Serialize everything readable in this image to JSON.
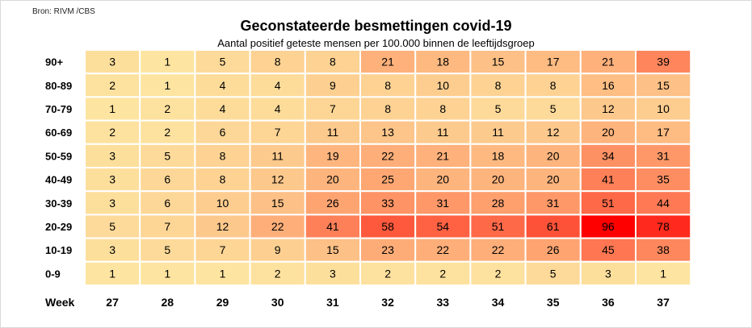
{
  "source": "Bron: RIVM /CBS",
  "colors": {
    "low": "#fde4a0",
    "mid": "#fe9a6a",
    "high": "#ff0000",
    "gridline": "#ffffff",
    "text": "#000000"
  },
  "chart_data": {
    "type": "heatmap",
    "title": "Geconstateerde besmettingen covid-19",
    "subtitle": "Aantal positief geteste mensen per 100.000 binnen de leeftijdsgroep",
    "xlabel": "Week",
    "x": [
      "27",
      "28",
      "29",
      "30",
      "31",
      "32",
      "33",
      "34",
      "35",
      "36",
      "37"
    ],
    "y": [
      "90+",
      "80-89",
      "70-79",
      "60-69",
      "50-59",
      "40-49",
      "30-39",
      "20-29",
      "10-19",
      "0-9"
    ],
    "values": [
      [
        "3",
        "1",
        "5",
        "8",
        "8",
        "21",
        "18",
        "15",
        "17",
        "21",
        "39"
      ],
      [
        "2",
        "1",
        "4",
        "4",
        "9",
        "8",
        "10",
        "8",
        "8",
        "16",
        "15"
      ],
      [
        "1",
        "2",
        "4",
        "4",
        "7",
        "8",
        "8",
        "5",
        "5",
        "12",
        "10"
      ],
      [
        "2",
        "2",
        "6",
        "7",
        "11",
        "13",
        "11",
        "11",
        "12",
        "20",
        "17"
      ],
      [
        "3",
        "5",
        "8",
        "11",
        "19",
        "22",
        "21",
        "18",
        "20",
        "34",
        "31"
      ],
      [
        "3",
        "6",
        "8",
        "12",
        "20",
        "25",
        "20",
        "20",
        "20",
        "41",
        "35"
      ],
      [
        "3",
        "6",
        "10",
        "15",
        "26",
        "33",
        "31",
        "28",
        "31",
        "51",
        "44"
      ],
      [
        "5",
        "7",
        "12",
        "22",
        "41",
        "58",
        "54",
        "51",
        "61",
        "96",
        "78"
      ],
      [
        "3",
        "5",
        "7",
        "9",
        "15",
        "23",
        "22",
        "22",
        "26",
        "45",
        "38"
      ],
      [
        "1",
        "1",
        "1",
        "2",
        "3",
        "2",
        "2",
        "2",
        "5",
        "3",
        "1"
      ]
    ],
    "value_range": [
      1,
      96
    ]
  }
}
